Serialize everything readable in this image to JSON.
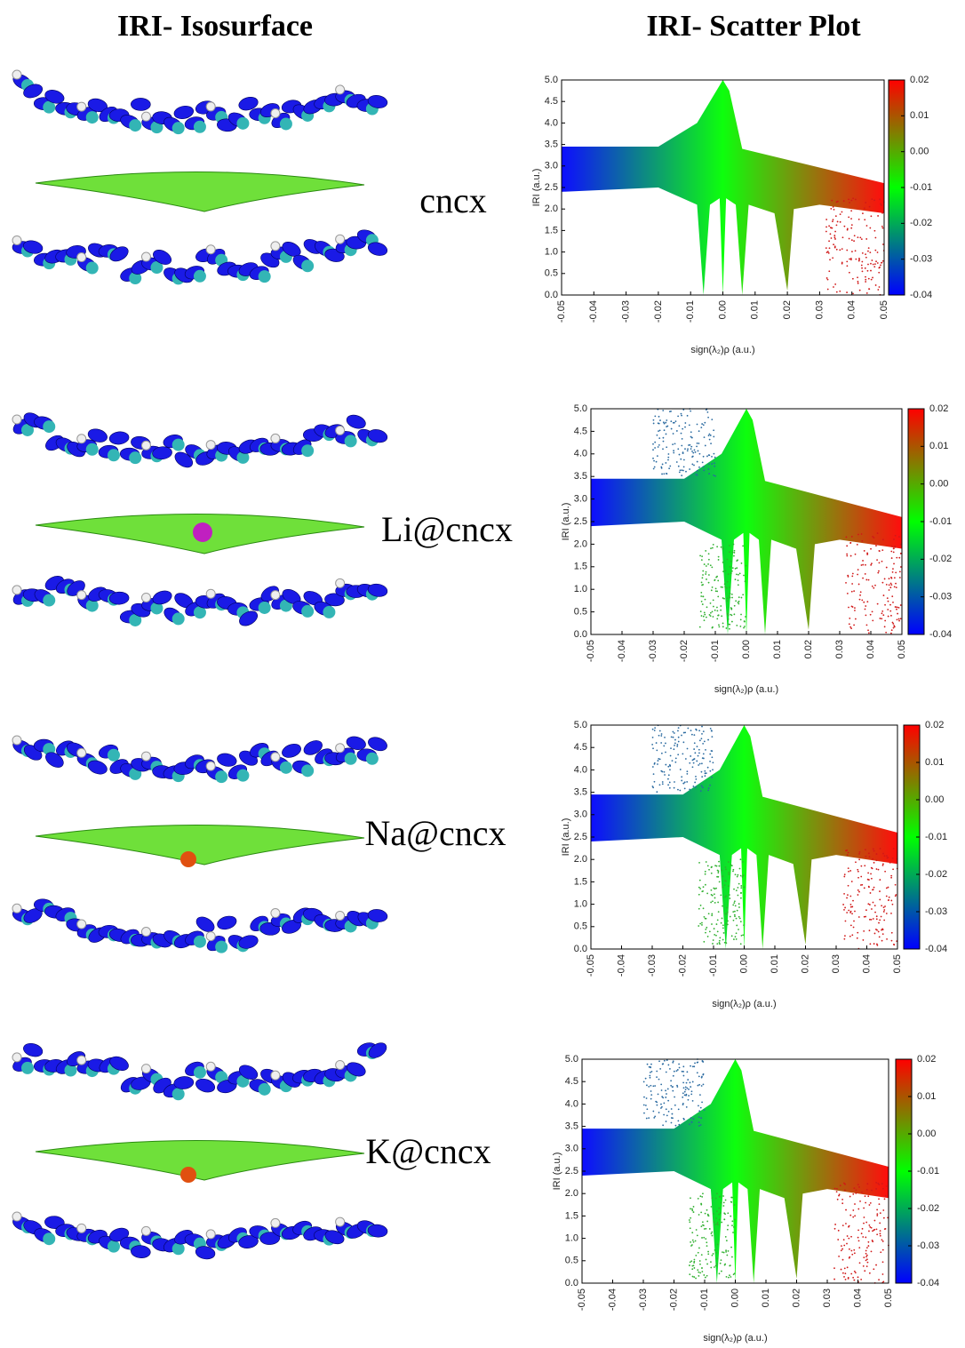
{
  "headers": {
    "left": "IRI- Isosurface",
    "right": "IRI- Scatter Plot"
  },
  "chart_data": [
    {
      "type": "scatter",
      "label": "cncx",
      "x_label": "sign(λ₂)ρ (a.u.)",
      "y_label": "IRI (a.u.)",
      "xlim": [
        -0.05,
        0.05
      ],
      "xticks": [
        -0.05,
        -0.04,
        -0.03,
        -0.02,
        -0.01,
        {
          "value": 0,
          "label": "0.00"
        },
        0.01,
        0.02,
        0.03,
        0.04,
        0.05
      ],
      "ylim": [
        0,
        5
      ],
      "yticks": [
        {
          "value": 0,
          "label": "0.0"
        },
        0.5,
        {
          "value": 1,
          "label": "1.0"
        },
        1.5,
        {
          "value": 2,
          "label": "2.0"
        },
        2.5,
        {
          "value": 3,
          "label": "3.0"
        },
        3.5,
        {
          "value": 4,
          "label": "4.0"
        },
        4.5,
        {
          "value": 5,
          "label": "5.0"
        }
      ],
      "clim": [
        -0.04,
        0.02
      ],
      "cticks": [
        -0.04,
        -0.03,
        -0.02,
        -0.01,
        {
          "value": 0,
          "label": "0.00"
        },
        0.01,
        0.02
      ],
      "colormap": [
        "#0000ff",
        "#00ff00",
        "#ff0000"
      ]
    },
    {
      "type": "scatter",
      "label": "Li@cncx",
      "x_label": "sign(λ₂)ρ (a.u.)",
      "y_label": "IRI (a.u.)",
      "xlim": [
        -0.05,
        0.05
      ],
      "xticks": [
        -0.05,
        -0.04,
        -0.03,
        -0.02,
        -0.01,
        {
          "value": 0,
          "label": "0.00"
        },
        0.01,
        0.02,
        0.03,
        0.04,
        0.05
      ],
      "ylim": [
        0,
        5
      ],
      "yticks": [
        {
          "value": 0,
          "label": "0.0"
        },
        0.5,
        {
          "value": 1,
          "label": "1.0"
        },
        1.5,
        {
          "value": 2,
          "label": "2.0"
        },
        2.5,
        {
          "value": 3,
          "label": "3.0"
        },
        3.5,
        {
          "value": 4,
          "label": "4.0"
        },
        4.5,
        {
          "value": 5,
          "label": "5.0"
        }
      ],
      "clim": [
        -0.04,
        0.02
      ],
      "cticks": [
        -0.04,
        -0.03,
        -0.02,
        -0.01,
        {
          "value": 0,
          "label": "0.00"
        },
        0.01,
        0.02
      ],
      "colormap": [
        "#0000ff",
        "#00ff00",
        "#ff0000"
      ]
    },
    {
      "type": "scatter",
      "label": "Na@cncx",
      "x_label": "sign(λ₂)ρ (a.u.)",
      "y_label": "IRI (a.u.)",
      "xlim": [
        -0.05,
        0.05
      ],
      "xticks": [
        -0.05,
        -0.04,
        -0.03,
        -0.02,
        -0.01,
        {
          "value": 0,
          "label": "0.00"
        },
        0.01,
        0.02,
        0.03,
        0.04,
        0.05
      ],
      "ylim": [
        0,
        5
      ],
      "yticks": [
        {
          "value": 0,
          "label": "0.0"
        },
        0.5,
        {
          "value": 1,
          "label": "1.0"
        },
        1.5,
        {
          "value": 2,
          "label": "2.0"
        },
        2.5,
        {
          "value": 3,
          "label": "3.0"
        },
        3.5,
        {
          "value": 4,
          "label": "4.0"
        },
        4.5,
        {
          "value": 5,
          "label": "5.0"
        }
      ],
      "clim": [
        -0.04,
        0.02
      ],
      "cticks": [
        -0.04,
        -0.03,
        -0.02,
        -0.01,
        {
          "value": 0,
          "label": "0.00"
        },
        0.01,
        0.02
      ],
      "colormap": [
        "#0000ff",
        "#00ff00",
        "#ff0000"
      ]
    },
    {
      "type": "scatter",
      "label": "K@cncx",
      "x_label": "sign(λ₂)ρ (a.u.)",
      "y_label": "IRI (a.u.)",
      "xlim": [
        -0.05,
        0.05
      ],
      "xticks": [
        -0.05,
        -0.04,
        -0.03,
        -0.02,
        -0.01,
        {
          "value": 0,
          "label": "0.00"
        },
        0.01,
        0.02,
        0.03,
        0.04,
        0.05
      ],
      "ylim": [
        0,
        5
      ],
      "yticks": [
        {
          "value": 0,
          "label": "0.0"
        },
        0.5,
        {
          "value": 1,
          "label": "1.0"
        },
        1.5,
        {
          "value": 2,
          "label": "2.0"
        },
        2.5,
        {
          "value": 3,
          "label": "3.0"
        },
        3.5,
        {
          "value": 4,
          "label": "4.0"
        },
        4.5,
        {
          "value": 5,
          "label": "5.0"
        }
      ],
      "clim": [
        -0.04,
        0.02
      ],
      "cticks": [
        -0.04,
        -0.03,
        -0.02,
        -0.01,
        {
          "value": 0,
          "label": "0.00"
        },
        0.01,
        0.02
      ],
      "colormap": [
        "#0000ff",
        "#00ff00",
        "#ff0000"
      ]
    }
  ]
}
